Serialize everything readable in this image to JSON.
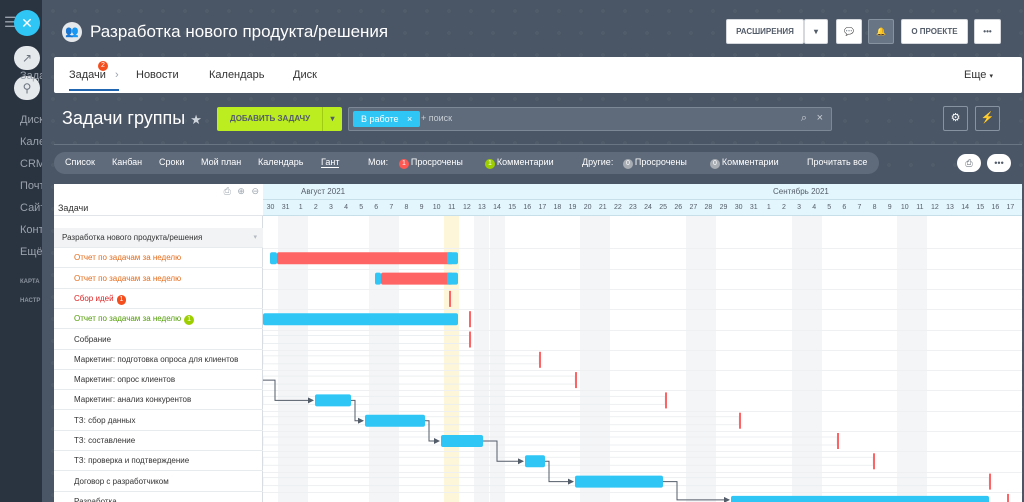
{
  "sidebar": {
    "items": [
      "Диск",
      "Кале",
      "CRM",
      "Почт",
      "Сайт",
      "Конт",
      "Ещё"
    ],
    "small": [
      "КАРТА",
      "НАСТР"
    ],
    "obscured_label": "Зада"
  },
  "header": {
    "title": "Разработка нового продукта/решения",
    "extensions_label": "РАСШИРЕНИЯ",
    "about_label": "О ПРОЕКТЕ",
    "more_label": "•••"
  },
  "tabs": {
    "items": [
      {
        "label": "Задачи",
        "badge": "2"
      },
      {
        "label": "Новости"
      },
      {
        "label": "Календарь"
      },
      {
        "label": "Диск"
      }
    ],
    "more_label": "Еще"
  },
  "toolbar": {
    "title": "Задачи группы",
    "add_label": "ДОБАВИТЬ ЗАДАЧУ",
    "filter_chip": "В работе",
    "search_placeholder": "+ поиск"
  },
  "views": {
    "items": [
      "Список",
      "Канбан",
      "Сроки",
      "Мой план",
      "Календарь",
      "Гант"
    ],
    "active": "Гант",
    "my_label": "Мои:",
    "my_overdue_count": "1",
    "my_overdue": "Просрочены",
    "my_comments_count": "1",
    "my_comments": "Комментарии",
    "other_label": "Другие:",
    "other_overdue_count": "0",
    "other_overdue": "Просрочены",
    "other_comments_count": "0",
    "other_comments": "Комментарии",
    "read_all": "Прочитать все"
  },
  "gantt": {
    "column_title": "Задачи",
    "months": [
      "Август 2021",
      "Сентябрь 2021"
    ],
    "days": [
      "30",
      "31",
      "1",
      "2",
      "3",
      "4",
      "5",
      "6",
      "7",
      "8",
      "9",
      "10",
      "11",
      "12",
      "13",
      "14",
      "15",
      "16",
      "17",
      "18",
      "19",
      "20",
      "21",
      "22",
      "23",
      "24",
      "25",
      "26",
      "27",
      "28",
      "29",
      "30",
      "31",
      "1",
      "2",
      "3",
      "4",
      "5",
      "6",
      "7",
      "8",
      "9",
      "10",
      "11",
      "12",
      "13",
      "14",
      "15",
      "16",
      "17"
    ],
    "weekend_days": [
      "31",
      "1",
      "7",
      "8",
      "14",
      "15",
      "21",
      "22",
      "28",
      "29",
      "4",
      "5",
      "11",
      "12"
    ],
    "today_day": "11",
    "tasks": [
      {
        "label": "Разработка нового продукта/решения",
        "kind": "group",
        "color": "#333333"
      },
      {
        "label": "Отчет по задачам за неделю",
        "color": "#e46b1a"
      },
      {
        "label": "Отчет по задачам за неделю",
        "color": "#e46b1a"
      },
      {
        "label": "Сбор идей",
        "color": "#e02020",
        "badge": "1",
        "badge_color": "#f44e1e"
      },
      {
        "label": "Отчет по задачам за неделю",
        "color": "#4f9b00",
        "badge": "1",
        "badge_color": "#9dcf00"
      },
      {
        "label": "Собрание",
        "color": "#333333"
      },
      {
        "label": "Маркетинг: подготовка опроса для клиентов",
        "color": "#333333"
      },
      {
        "label": "Маркетинг: опрос клиентов",
        "color": "#333333"
      },
      {
        "label": "Маркетинг: анализ конкурентов",
        "color": "#333333"
      },
      {
        "label": "ТЗ: сбор данных",
        "color": "#333333"
      },
      {
        "label": "ТЗ: составление",
        "color": "#333333"
      },
      {
        "label": "ТЗ: проверка и подтверждение",
        "color": "#333333"
      },
      {
        "label": "Договор с разработчиком",
        "color": "#333333"
      },
      {
        "label": "Разработка",
        "color": "#333333"
      }
    ]
  },
  "colors": {
    "accent": "#2fc6f6",
    "overdue": "#ff6464",
    "add_button": "#bbed21",
    "tab_badge": "#f44e1e"
  }
}
